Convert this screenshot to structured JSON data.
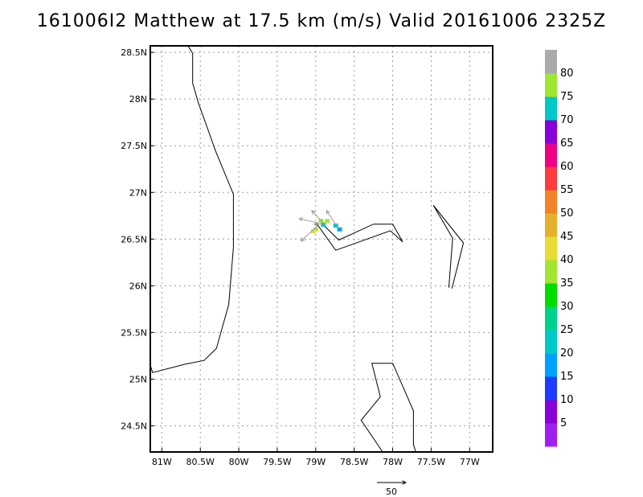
{
  "title": "161006I2 Matthew at 17.5 km (m/s) Valid 20161006 2325Z",
  "map": {
    "lon_range": [
      -81.15,
      -76.7
    ],
    "lat_range": [
      24.22,
      28.57
    ],
    "x_ticks": [
      {
        "value": -81.0,
        "label": "81W"
      },
      {
        "value": -80.5,
        "label": "80.5W"
      },
      {
        "value": -80.0,
        "label": "80W"
      },
      {
        "value": -79.5,
        "label": "79.5W"
      },
      {
        "value": -79.0,
        "label": "79W"
      },
      {
        "value": -78.5,
        "label": "78.5W"
      },
      {
        "value": -78.0,
        "label": "78W"
      },
      {
        "value": -77.5,
        "label": "77.5W"
      },
      {
        "value": -77.0,
        "label": "77W"
      }
    ],
    "y_ticks": [
      {
        "value": 28.5,
        "label": "28.5N"
      },
      {
        "value": 28.0,
        "label": "28N"
      },
      {
        "value": 27.5,
        "label": "27.5N"
      },
      {
        "value": 27.0,
        "label": "27N"
      },
      {
        "value": 26.5,
        "label": "26.5N"
      },
      {
        "value": 26.0,
        "label": "26N"
      },
      {
        "value": 25.5,
        "label": "25.5N"
      },
      {
        "value": 25.0,
        "label": "25N"
      },
      {
        "value": 24.5,
        "label": "24.5N"
      }
    ],
    "grid": true,
    "coastlines": [
      [
        [
          -80.66,
          28.57
        ],
        [
          -80.6,
          28.49
        ],
        [
          -80.6,
          28.17
        ],
        [
          -80.53,
          27.97
        ],
        [
          -80.3,
          27.44
        ],
        [
          -80.07,
          26.98
        ],
        [
          -80.07,
          26.41
        ],
        [
          -80.13,
          25.8
        ],
        [
          -80.29,
          25.33
        ],
        [
          -80.45,
          25.2
        ],
        [
          -80.7,
          25.16
        ],
        [
          -81.12,
          25.07
        ],
        [
          -81.15,
          25.15
        ]
      ],
      [
        [
          -79.0,
          26.68
        ],
        [
          -78.74,
          26.38
        ],
        [
          -78.03,
          26.59
        ],
        [
          -77.87,
          26.47
        ],
        [
          -78.0,
          26.66
        ],
        [
          -78.25,
          26.66
        ],
        [
          -78.7,
          26.49
        ],
        [
          -78.96,
          26.7
        ]
      ],
      [
        [
          -77.23,
          25.97
        ],
        [
          -77.08,
          26.46
        ],
        [
          -77.47,
          26.86
        ],
        [
          -77.22,
          26.51
        ],
        [
          -77.27,
          25.98
        ]
      ],
      [
        [
          -78.13,
          24.22
        ],
        [
          -78.41,
          24.56
        ],
        [
          -78.16,
          24.81
        ],
        [
          -78.27,
          25.17
        ],
        [
          -78.0,
          25.17
        ],
        [
          -77.73,
          24.66
        ],
        [
          -77.73,
          24.3
        ],
        [
          -77.7,
          24.22
        ]
      ]
    ],
    "wind_cells": [
      {
        "lon": -78.85,
        "lat": 26.69,
        "speed": 37
      },
      {
        "lon": -78.93,
        "lat": 26.69,
        "speed": 37
      },
      {
        "lon": -78.9,
        "lat": 26.65,
        "speed": 22
      },
      {
        "lon": -78.74,
        "lat": 26.64,
        "speed": 22
      },
      {
        "lon": -78.69,
        "lat": 26.6,
        "speed": 17
      },
      {
        "lon": -79.0,
        "lat": 26.6,
        "speed": 37
      },
      {
        "lon": -79.03,
        "lat": 26.58,
        "speed": 40
      }
    ],
    "wind_vectors": [
      {
        "lon": -78.96,
        "lat": 26.67,
        "u": -34,
        "v": 8
      },
      {
        "lon": -78.9,
        "lat": 26.67,
        "u": -20,
        "v": 22
      },
      {
        "lon": -78.71,
        "lat": 26.62,
        "u": -20,
        "v": 30
      },
      {
        "lon": -78.98,
        "lat": 26.64,
        "u": -28,
        "v": -26
      },
      {
        "lon": -78.87,
        "lat": 26.66,
        "u": -20,
        "v": 0
      }
    ]
  },
  "reference_vector": {
    "label": "50",
    "value": 50
  },
  "colorbar": {
    "bins": [
      {
        "color": "#a020f0"
      },
      {
        "color": "#8a00d8"
      },
      {
        "color": "#1e3cff"
      },
      {
        "color": "#00a0ff"
      },
      {
        "color": "#00c8c8"
      },
      {
        "color": "#00d28c"
      },
      {
        "color": "#00dc00"
      },
      {
        "color": "#a0e632"
      },
      {
        "color": "#e6dc32"
      },
      {
        "color": "#e6af2d"
      },
      {
        "color": "#f08228"
      },
      {
        "color": "#fa3c3c"
      },
      {
        "color": "#f00082"
      },
      {
        "color": "#8a00d8"
      },
      {
        "color": "#00c8c8"
      },
      {
        "color": "#a0e632"
      },
      {
        "color": "#aaaaaa"
      }
    ],
    "labels": [
      "5",
      "10",
      "15",
      "20",
      "25",
      "30",
      "35",
      "40",
      "45",
      "50",
      "55",
      "60",
      "65",
      "70",
      "75",
      "80"
    ]
  },
  "style": {
    "frame": "#000000",
    "grid": "#9a9a9a",
    "coast": "#000000",
    "vector": "#9a9a9a"
  }
}
